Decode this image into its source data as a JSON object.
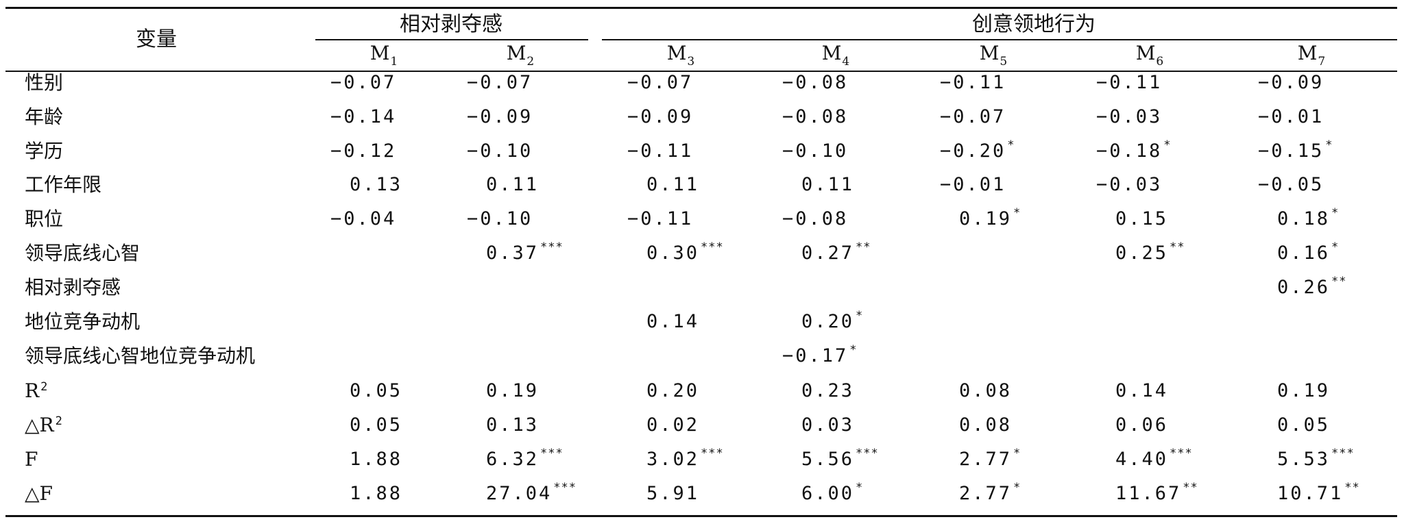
{
  "header": {
    "variable_label": "变量",
    "group1_label": "相对剥夺感",
    "group2_label": "创意领地行为",
    "models": [
      {
        "base": "M",
        "sub": "1"
      },
      {
        "base": "M",
        "sub": "2"
      },
      {
        "base": "M",
        "sub": "3"
      },
      {
        "base": "M",
        "sub": "4"
      },
      {
        "base": "M",
        "sub": "5"
      },
      {
        "base": "M",
        "sub": "6"
      },
      {
        "base": "M",
        "sub": "7"
      }
    ]
  },
  "rows": [
    {
      "label": "性别",
      "cells": [
        {
          "v": "−0.07",
          "s": ""
        },
        {
          "v": "−0.07",
          "s": ""
        },
        {
          "v": "−0.07",
          "s": ""
        },
        {
          "v": "−0.08",
          "s": ""
        },
        {
          "v": "−0.11",
          "s": ""
        },
        {
          "v": "−0.11",
          "s": ""
        },
        {
          "v": "−0.09",
          "s": ""
        }
      ]
    },
    {
      "label": "年龄",
      "cells": [
        {
          "v": "−0.14",
          "s": ""
        },
        {
          "v": "−0.09",
          "s": ""
        },
        {
          "v": "−0.09",
          "s": ""
        },
        {
          "v": "−0.08",
          "s": ""
        },
        {
          "v": "−0.07",
          "s": ""
        },
        {
          "v": "−0.03",
          "s": ""
        },
        {
          "v": "−0.01",
          "s": ""
        }
      ]
    },
    {
      "label": "学历",
      "cells": [
        {
          "v": "−0.12",
          "s": ""
        },
        {
          "v": "−0.10",
          "s": ""
        },
        {
          "v": "−0.11",
          "s": ""
        },
        {
          "v": "−0.10",
          "s": ""
        },
        {
          "v": "−0.20",
          "s": "*"
        },
        {
          "v": "−0.18",
          "s": "*"
        },
        {
          "v": "−0.15",
          "s": "*"
        }
      ]
    },
    {
      "label": "工作年限",
      "cells": [
        {
          "v": "0.13",
          "s": ""
        },
        {
          "v": "0.11",
          "s": ""
        },
        {
          "v": "0.11",
          "s": ""
        },
        {
          "v": "0.11",
          "s": ""
        },
        {
          "v": "−0.01",
          "s": ""
        },
        {
          "v": "−0.03",
          "s": ""
        },
        {
          "v": "−0.05",
          "s": ""
        }
      ]
    },
    {
      "label": "职位",
      "cells": [
        {
          "v": "−0.04",
          "s": ""
        },
        {
          "v": "−0.10",
          "s": ""
        },
        {
          "v": "−0.11",
          "s": ""
        },
        {
          "v": "−0.08",
          "s": ""
        },
        {
          "v": "0.19",
          "s": "*"
        },
        {
          "v": "0.15",
          "s": ""
        },
        {
          "v": "0.18",
          "s": "*"
        }
      ]
    },
    {
      "label": "领导底线心智",
      "cells": [
        {
          "v": "",
          "s": ""
        },
        {
          "v": "0.37",
          "s": "***"
        },
        {
          "v": "0.30",
          "s": "***"
        },
        {
          "v": "0.27",
          "s": "**"
        },
        {
          "v": "",
          "s": ""
        },
        {
          "v": "0.25",
          "s": "**"
        },
        {
          "v": "0.16",
          "s": "*"
        }
      ]
    },
    {
      "label": "相对剥夺感",
      "cells": [
        {
          "v": "",
          "s": ""
        },
        {
          "v": "",
          "s": ""
        },
        {
          "v": "",
          "s": ""
        },
        {
          "v": "",
          "s": ""
        },
        {
          "v": "",
          "s": ""
        },
        {
          "v": "",
          "s": ""
        },
        {
          "v": "0.26",
          "s": "**"
        }
      ]
    },
    {
      "label": "地位竞争动机",
      "cells": [
        {
          "v": "",
          "s": ""
        },
        {
          "v": "",
          "s": ""
        },
        {
          "v": "0.14",
          "s": ""
        },
        {
          "v": "0.20",
          "s": "*"
        },
        {
          "v": "",
          "s": ""
        },
        {
          "v": "",
          "s": ""
        },
        {
          "v": "",
          "s": ""
        }
      ]
    },
    {
      "label": "领导底线心智地位竞争动机",
      "cells": [
        {
          "v": "",
          "s": ""
        },
        {
          "v": "",
          "s": ""
        },
        {
          "v": "",
          "s": ""
        },
        {
          "v": "−0.17",
          "s": "*"
        },
        {
          "v": "",
          "s": ""
        },
        {
          "v": "",
          "s": ""
        },
        {
          "v": "",
          "s": ""
        }
      ]
    },
    {
      "label": "R",
      "label_sup": "2",
      "cells": [
        {
          "v": "0.05",
          "s": ""
        },
        {
          "v": "0.19",
          "s": ""
        },
        {
          "v": "0.20",
          "s": ""
        },
        {
          "v": "0.23",
          "s": ""
        },
        {
          "v": "0.08",
          "s": ""
        },
        {
          "v": "0.14",
          "s": ""
        },
        {
          "v": "0.19",
          "s": ""
        }
      ]
    },
    {
      "label": "△R",
      "label_sup": "2",
      "cells": [
        {
          "v": "0.05",
          "s": ""
        },
        {
          "v": "0.13",
          "s": ""
        },
        {
          "v": "0.02",
          "s": ""
        },
        {
          "v": "0.03",
          "s": ""
        },
        {
          "v": "0.08",
          "s": ""
        },
        {
          "v": "0.06",
          "s": ""
        },
        {
          "v": "0.05",
          "s": ""
        }
      ]
    },
    {
      "label": "F",
      "cells": [
        {
          "v": "1.88",
          "s": ""
        },
        {
          "v": "6.32",
          "s": "***"
        },
        {
          "v": "3.02",
          "s": "***"
        },
        {
          "v": "5.56",
          "s": "***"
        },
        {
          "v": "2.77",
          "s": "*"
        },
        {
          "v": "4.40",
          "s": "***"
        },
        {
          "v": "5.53",
          "s": "***"
        }
      ]
    },
    {
      "label": "△F",
      "cells": [
        {
          "v": "1.88",
          "s": ""
        },
        {
          "v": "27.04",
          "s": "***"
        },
        {
          "v": "5.91",
          "s": ""
        },
        {
          "v": "6.00",
          "s": "*"
        },
        {
          "v": "2.77",
          "s": "*"
        },
        {
          "v": "11.67",
          "s": "**"
        },
        {
          "v": "10.71",
          "s": "**"
        }
      ]
    }
  ]
}
